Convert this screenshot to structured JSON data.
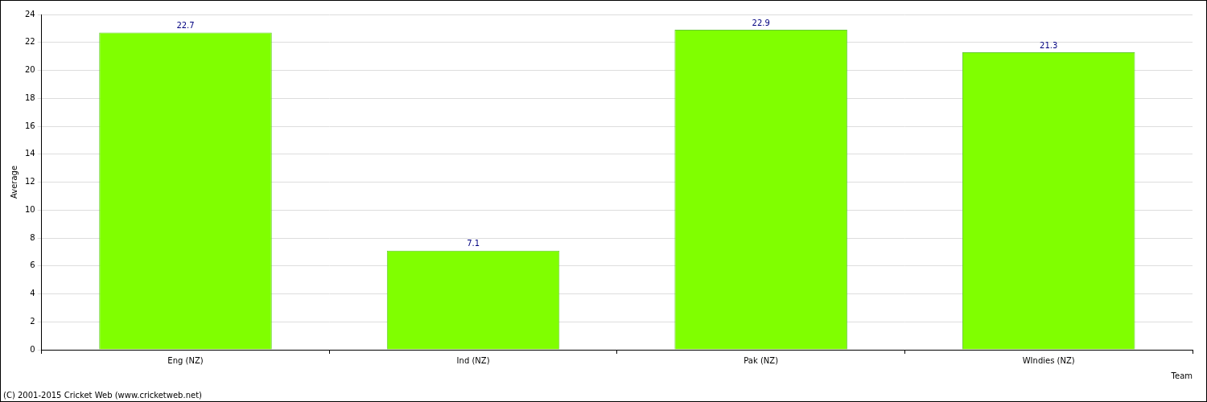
{
  "chart_data": {
    "type": "bar",
    "categories": [
      "Eng (NZ)",
      "Ind (NZ)",
      "Pak (NZ)",
      "WIndies (NZ)"
    ],
    "values": [
      22.7,
      7.1,
      22.9,
      21.3
    ],
    "color": "#80ff00",
    "x_label": "Team",
    "y_label": "Average",
    "ylim": [
      0,
      24
    ],
    "yticks": [
      0,
      2,
      4,
      6,
      8,
      10,
      12,
      14,
      16,
      18,
      20,
      22,
      24
    ],
    "grid": true,
    "data_labels": true,
    "annotations": [
      "(C) 2001-2015 Cricket Web (www.cricketweb.net)"
    ]
  }
}
